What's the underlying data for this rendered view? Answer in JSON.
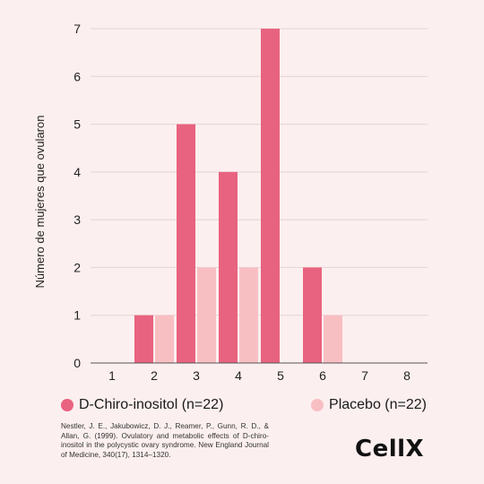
{
  "chart_data": {
    "type": "bar",
    "categories": [
      "1",
      "2",
      "3",
      "4",
      "5",
      "6",
      "7",
      "8"
    ],
    "series": [
      {
        "name": "D-Chiro-inositol (n=22)",
        "values": [
          0,
          1,
          5,
          4,
          7,
          2,
          0,
          0
        ],
        "color": "#e8637f"
      },
      {
        "name": "Placebo (n=22)",
        "values": [
          0,
          1,
          2,
          2,
          0,
          1,
          0,
          0
        ],
        "color": "#f8bfc3"
      }
    ],
    "title": "",
    "xlabel": "",
    "ylabel": "Número de mujeres que ovularon",
    "ylim": [
      0,
      7
    ],
    "yticks": [
      0,
      1,
      2,
      3,
      4,
      5,
      6,
      7
    ],
    "grid": true,
    "legend_position": "bottom"
  },
  "citation": "Nestler, J. E., Jakubowicz, D. J., Reamer, P., Gunn, R. D., & Allan, G. (1999). Ovulatory and metabolic effects of D-chiro-inositol in the polycystic ovary syndrome. New England Journal of Medicine, 340(17), 1314–1320.",
  "logo_text": "CellX"
}
